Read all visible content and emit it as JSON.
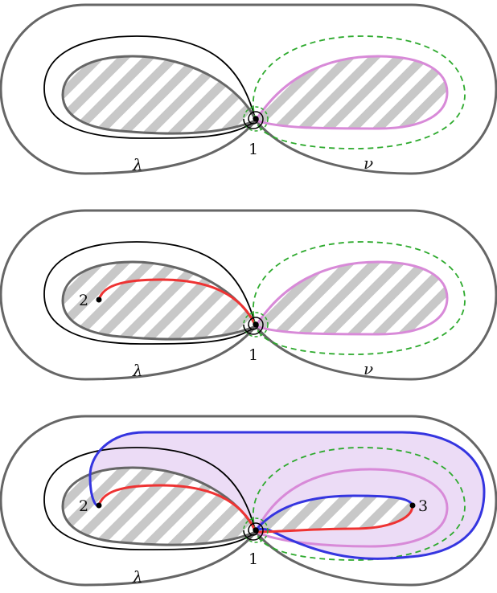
{
  "colors": {
    "outline": "#666666",
    "curve": "#000000",
    "hatch_stripe": "#c8c8c8",
    "nu_curve": "#d88ad8",
    "dashed": "#2eaa2e",
    "red_arc": "#ee3333",
    "blue_curve": "#3535e0",
    "region_fill": "#ecdcf6"
  },
  "panels": [
    {
      "id": "panel-1",
      "labels": {
        "point_1": "1",
        "lambda": "λ",
        "nu": "ν"
      }
    },
    {
      "id": "panel-2",
      "labels": {
        "point_1": "1",
        "point_2": "2",
        "lambda": "λ",
        "nu": "ν"
      }
    },
    {
      "id": "panel-3",
      "labels": {
        "point_1": "1",
        "point_2": "2",
        "point_3": "3",
        "lambda": "λ"
      }
    }
  ]
}
